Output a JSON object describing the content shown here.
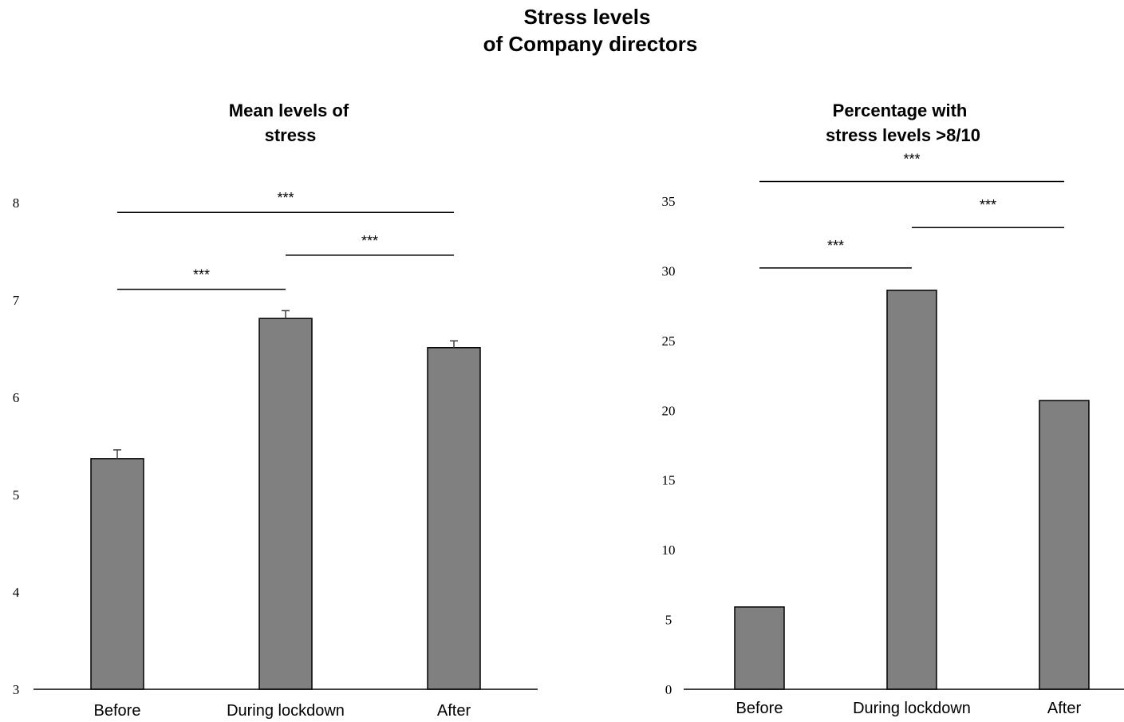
{
  "title_lines": [
    "Stress levels",
    "of Company directors"
  ],
  "chart_data": [
    {
      "type": "bar",
      "title_lines": [
        "Mean levels of",
        "stress"
      ],
      "categories": [
        "Before",
        "During lockdown",
        "After"
      ],
      "values": [
        5.37,
        6.81,
        6.51
      ],
      "error": [
        0.09,
        0.08,
        0.07
      ],
      "ylim": [
        3,
        8
      ],
      "yticks": [
        3,
        4,
        5,
        6,
        7,
        8
      ],
      "xlabel": "",
      "ylabel": "",
      "grid": false,
      "bar_color": "#808080",
      "significance": [
        {
          "from": 0,
          "to": 2,
          "label": "***",
          "y": 7.9
        },
        {
          "from": 1,
          "to": 2,
          "label": "***",
          "y": 7.46
        },
        {
          "from": 0,
          "to": 1,
          "label": "***",
          "y": 7.11
        }
      ]
    },
    {
      "type": "bar",
      "title_lines": [
        "Percentage with",
        "stress levels >8/10"
      ],
      "categories": [
        "Before",
        "During lockdown",
        "After"
      ],
      "values": [
        5.9,
        28.6,
        20.7
      ],
      "ylim": [
        0,
        37
      ],
      "yticks": [
        0,
        5,
        10,
        15,
        20,
        25,
        30,
        35
      ],
      "xlabel": "",
      "ylabel": "",
      "grid": false,
      "bar_color": "#808080",
      "significance": [
        {
          "from": 0,
          "to": 2,
          "label": "***",
          "y": 36.4
        },
        {
          "from": 1,
          "to": 2,
          "label": "***",
          "y": 33.1
        },
        {
          "from": 0,
          "to": 1,
          "label": "***",
          "y": 30.2
        }
      ]
    }
  ]
}
